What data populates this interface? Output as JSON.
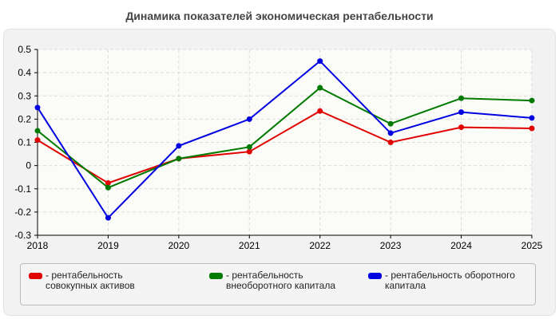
{
  "chart_data": {
    "type": "line",
    "title": "Динамика показателей экономическая рентабельности",
    "x": [
      "2018",
      "2019",
      "2020",
      "2021",
      "2022",
      "2023",
      "2024",
      "2025"
    ],
    "ylim": [
      -0.3,
      0.5
    ],
    "yticks": [
      "0.5",
      "0.4",
      "0.3",
      "0.2",
      "0.1",
      "0",
      "-0.1",
      "-0.2",
      "-0.3"
    ],
    "grid": true,
    "legend_position": "bottom",
    "series": [
      {
        "name": "- рентабельность совокупных активов",
        "color": "#e00000",
        "values": [
          0.11,
          -0.075,
          0.03,
          0.06,
          0.235,
          0.1,
          0.165,
          0.16
        ]
      },
      {
        "name": "- рентабельность внеоборотного капитала",
        "color": "#007a00",
        "values": [
          0.15,
          -0.095,
          0.03,
          0.08,
          0.335,
          0.18,
          0.29,
          0.28
        ]
      },
      {
        "name": "- рентабельность оборотного капитала",
        "color": "#0000e0",
        "values": [
          0.25,
          -0.225,
          0.085,
          0.2,
          0.45,
          0.14,
          0.23,
          0.205
        ]
      }
    ]
  }
}
